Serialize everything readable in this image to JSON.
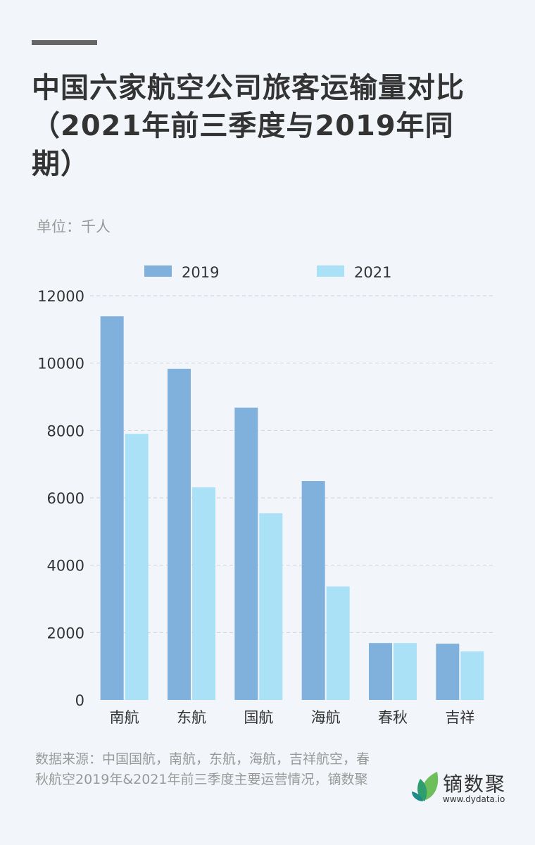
{
  "title": "中国六家航空公司旅客运输量对比（2021年前三季度与2019年同期）",
  "unit": "单位：千人",
  "source": "数据来源：中国国航，南航，东航，海航，吉祥航空，春秋航空2019年&2021年前三季度主要运营情况，镝数聚",
  "logo": {
    "name": "镝数聚",
    "url": "www.dydata.io"
  },
  "chart_data": {
    "type": "bar",
    "categories": [
      "南航",
      "东航",
      "国航",
      "海航",
      "春秋",
      "吉祥"
    ],
    "series": [
      {
        "name": "2019",
        "color": "#7fb1dc",
        "values": [
          11390,
          9830,
          8680,
          6500,
          1690,
          1670
        ]
      },
      {
        "name": "2021",
        "color": "#abe1f7",
        "values": [
          7900,
          6310,
          5540,
          3370,
          1690,
          1440
        ]
      }
    ],
    "ylim": [
      0,
      12000
    ],
    "yticks": [
      "0",
      "2000",
      "4000",
      "6000",
      "8000",
      "10000",
      "12000"
    ],
    "grid": true,
    "legend": "top"
  }
}
